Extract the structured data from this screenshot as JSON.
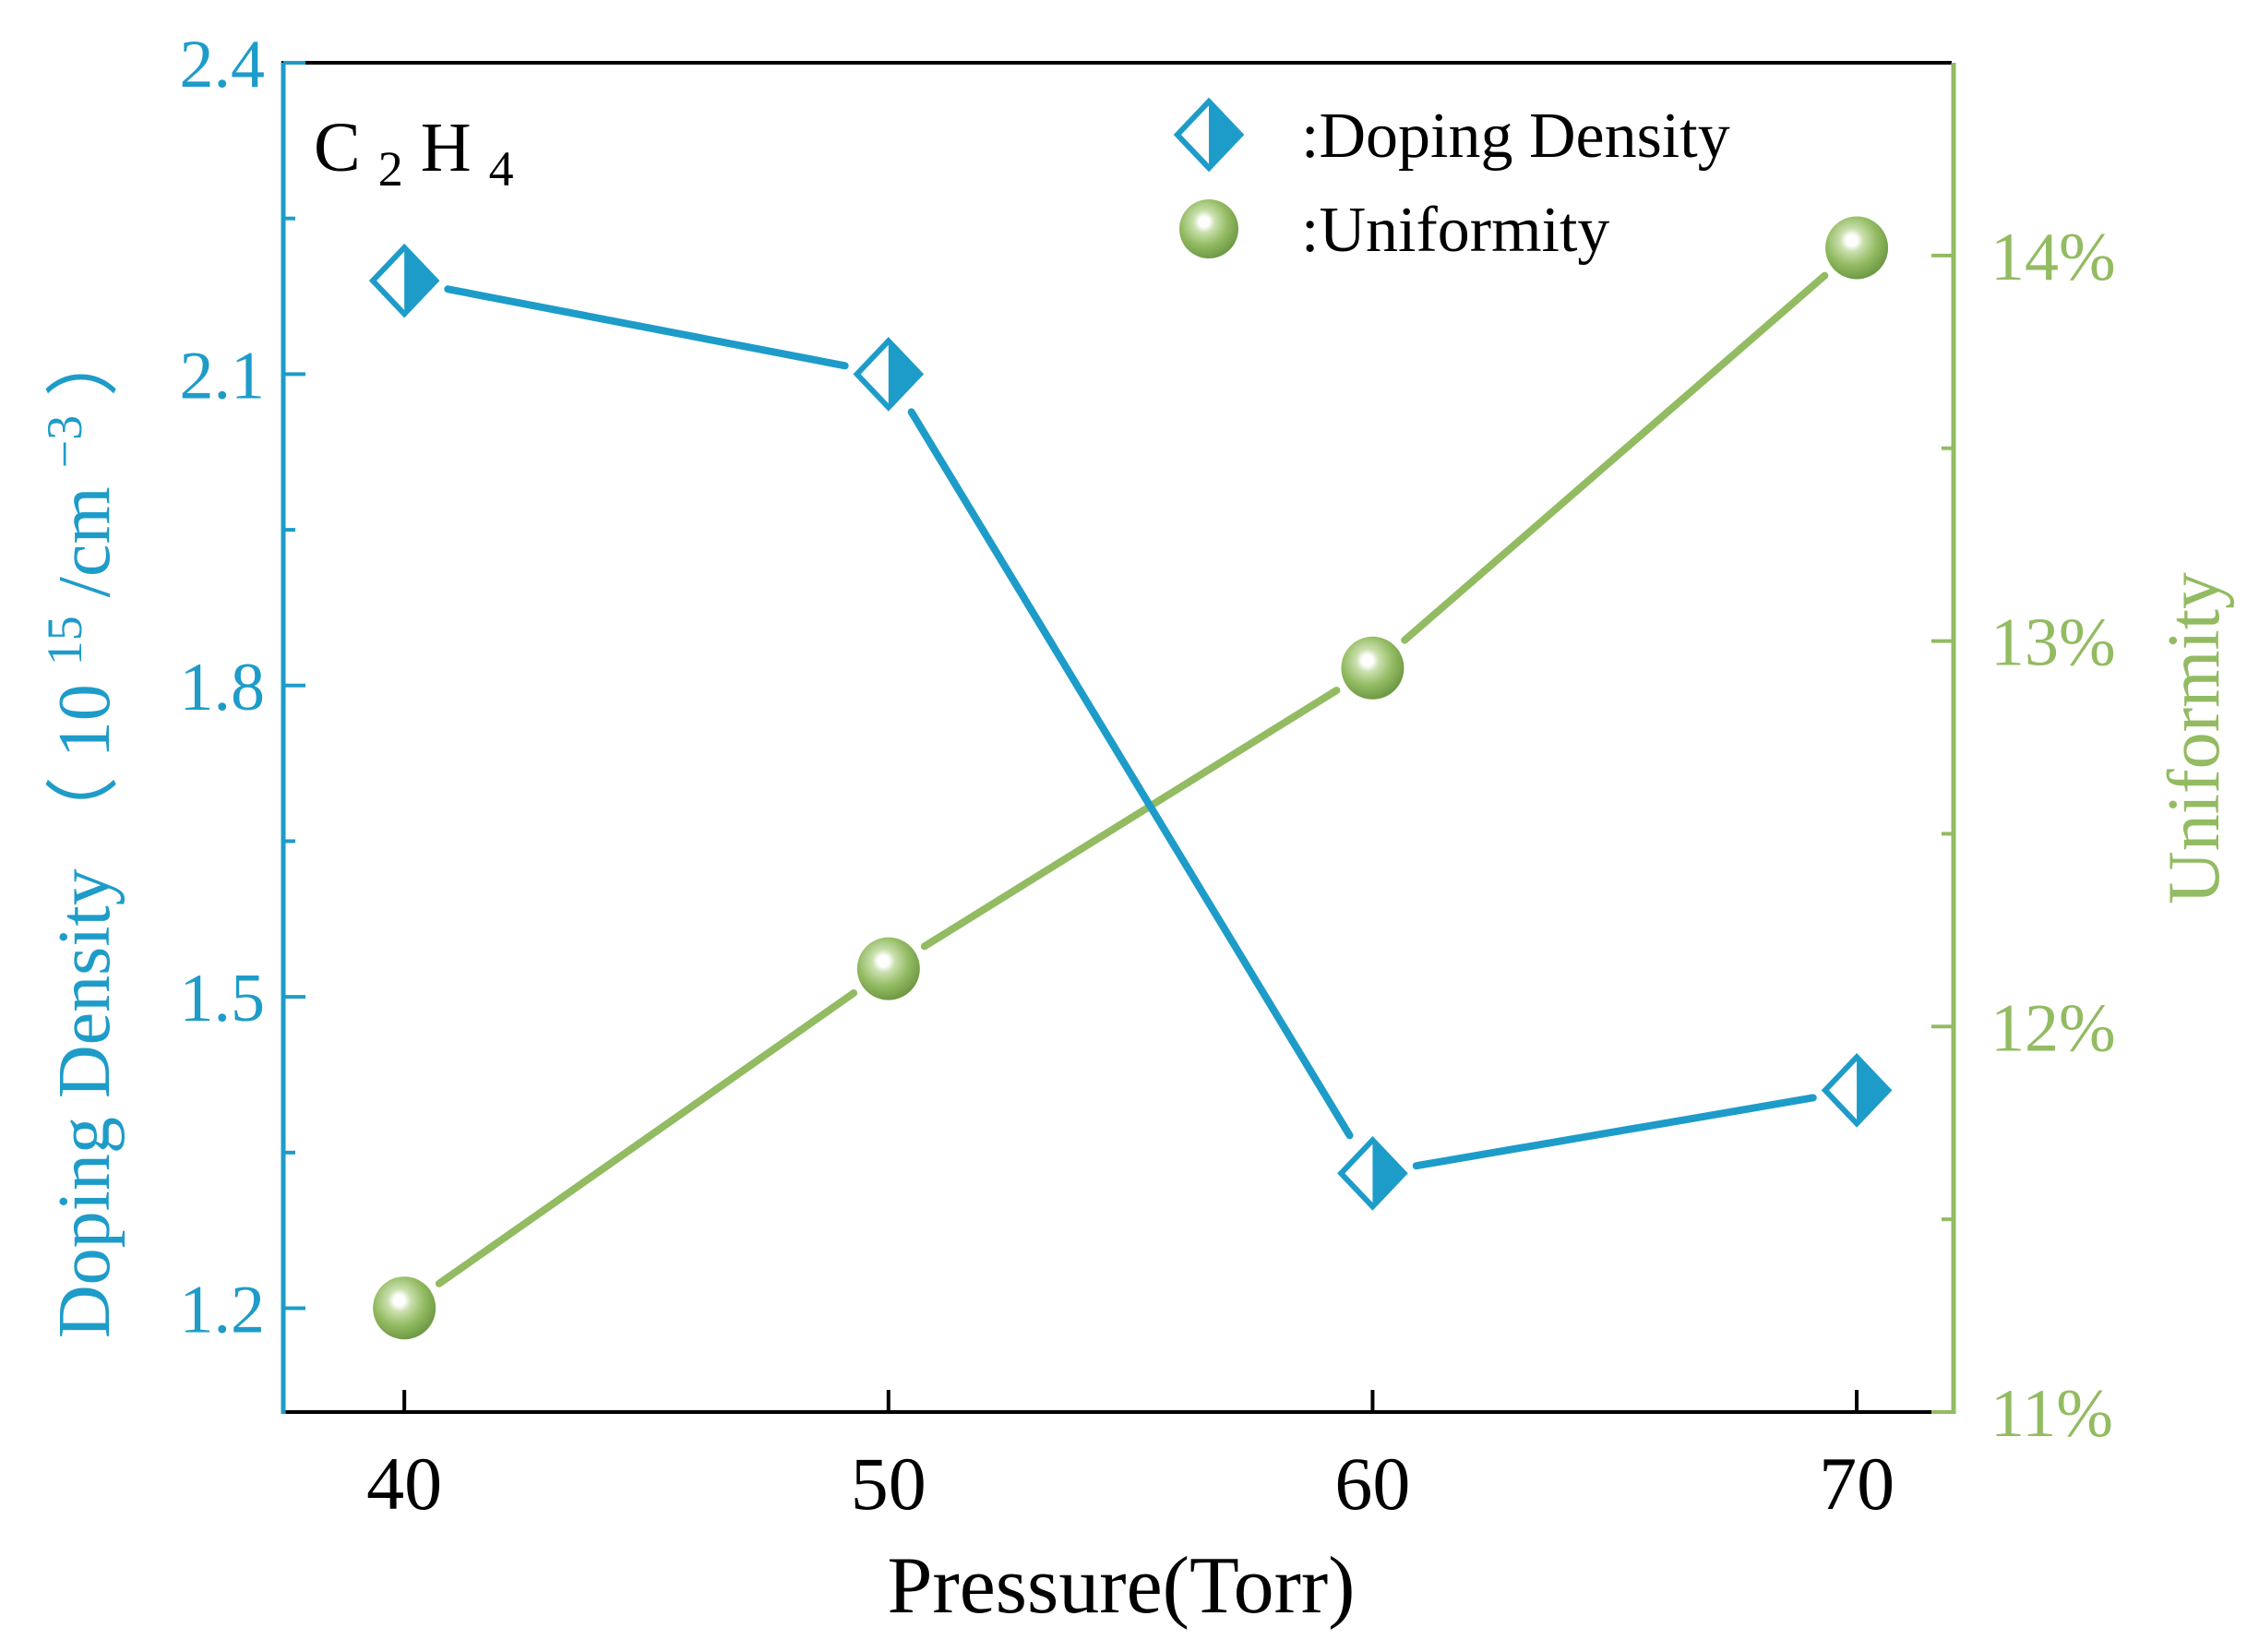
{
  "colors": {
    "doping": "#1e9cc9",
    "uniformity": "#93bb62",
    "axis": "#000000",
    "background": "#ffffff"
  },
  "chart_data": {
    "type": "line",
    "species_label": {
      "base1": "C",
      "sub1": "2",
      "base2": "H",
      "sub2": "4"
    },
    "x": [
      40,
      50,
      60,
      70
    ],
    "xlabel": "Pressure(Torr)",
    "xlim": [
      37.5,
      72
    ],
    "x_ticks": [
      40,
      50,
      60,
      70
    ],
    "x_tick_labels": [
      "40",
      "50",
      "60",
      "70"
    ],
    "y_left": {
      "label_main": "Doping Density",
      "label_paren_open": "（",
      "label_base": "10",
      "label_exp": "15",
      "label_unit": "/cm",
      "label_unit_exp": "−3",
      "label_paren_close": "）",
      "lim": [
        1.1,
        2.4
      ],
      "ticks": [
        1.2,
        1.5,
        1.8,
        2.1,
        2.4
      ],
      "tick_labels": [
        "1.2",
        "1.5",
        "1.8",
        "2.1",
        "2.4"
      ],
      "minor_ticks": [
        1.35,
        1.65,
        1.95,
        2.25
      ]
    },
    "y_right": {
      "label": "Uniformity",
      "lim": [
        11,
        14.5
      ],
      "ticks": [
        11,
        12,
        13,
        14
      ],
      "tick_labels": [
        "11%",
        "12%",
        "13%",
        "14%"
      ],
      "minor_ticks": [
        11.5,
        12.5,
        13.5
      ]
    },
    "series": [
      {
        "name": "Doping Density",
        "legend_label": ":Doping Density",
        "axis": "left",
        "marker": "half-filled-diamond",
        "values": [
          2.19,
          2.1,
          1.33,
          1.41
        ]
      },
      {
        "name": "Uniformity",
        "legend_label": ":Uniformity",
        "axis": "right",
        "marker": "sphere",
        "values": [
          11.27,
          12.15,
          12.93,
          14.02
        ]
      }
    ],
    "legend_position": "top-right"
  }
}
